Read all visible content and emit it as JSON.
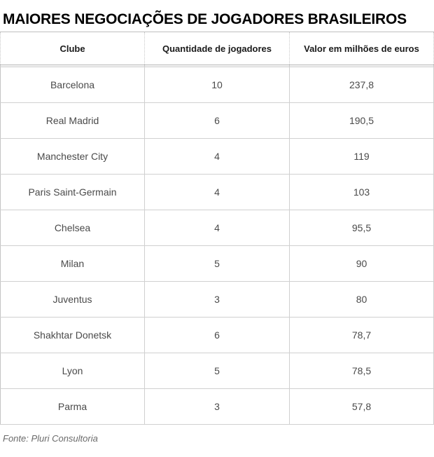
{
  "chart_data": {
    "type": "table",
    "title": "MAIORES NEGOCIAÇÕES DE JOGADORES BRASILEIROS",
    "columns": [
      "Clube",
      "Quantidade de jogadores",
      "Valor em milhões de euros"
    ],
    "rows": [
      [
        "Barcelona",
        "10",
        "237,8"
      ],
      [
        "Real Madrid",
        "6",
        "190,5"
      ],
      [
        "Manchester City",
        "4",
        "119"
      ],
      [
        "Paris Saint-Germain",
        "4",
        "103"
      ],
      [
        "Chelsea",
        "4",
        "95,5"
      ],
      [
        "Milan",
        "5",
        "90"
      ],
      [
        "Juventus",
        "3",
        "80"
      ],
      [
        "Shakhtar Donetsk",
        "6",
        "78,7"
      ],
      [
        "Lyon",
        "5",
        "78,5"
      ],
      [
        "Parma",
        "3",
        "57,8"
      ]
    ],
    "source": "Fonte: Pluri Consultoria"
  }
}
